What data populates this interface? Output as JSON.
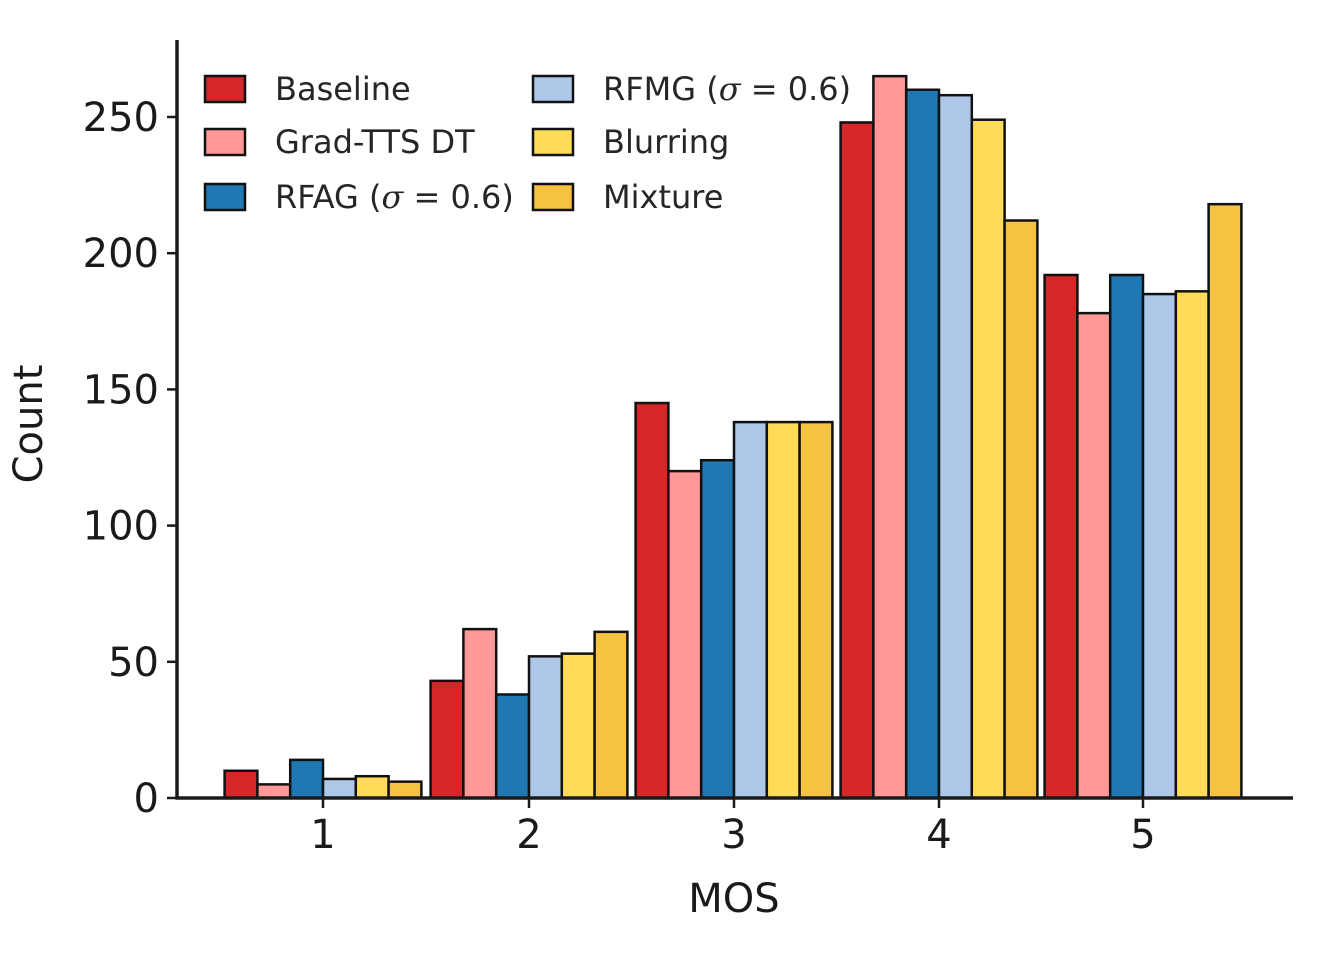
{
  "chart_data": {
    "type": "bar",
    "title": "",
    "xlabel": "MOS",
    "ylabel": "Count",
    "categories": [
      "1",
      "2",
      "3",
      "4",
      "5"
    ],
    "ylim": [
      0,
      280
    ],
    "yticks": [
      0,
      50,
      100,
      150,
      200,
      250
    ],
    "grid": false,
    "legend_position": "top-left",
    "legend_columns": 2,
    "series": [
      {
        "name": "Baseline",
        "color": "#d62728",
        "values": [
          10,
          43,
          145,
          248,
          192
        ]
      },
      {
        "name": "Grad-TTS DT",
        "color": "#ff9896",
        "values": [
          5,
          62,
          120,
          265,
          178
        ]
      },
      {
        "name": "RFAG (σ = 0.6)",
        "label_prefix": "RFAG (",
        "label_symbol": "σ",
        "label_suffix": " = 0.6)",
        "color": "#1f77b4",
        "values": [
          14,
          38,
          124,
          260,
          192
        ]
      },
      {
        "name": "RFMG (σ = 0.6)",
        "label_prefix": "RFMG (",
        "label_symbol": "σ",
        "label_suffix": " = 0.6)",
        "color": "#aec7e8",
        "values": [
          7,
          52,
          138,
          258,
          185
        ]
      },
      {
        "name": "Blurring",
        "color": "#ffdb58",
        "values": [
          8,
          53,
          138,
          249,
          186
        ]
      },
      {
        "name": "Mixture",
        "color": "#f5c242",
        "values": [
          6,
          61,
          138,
          212,
          218
        ]
      }
    ]
  }
}
